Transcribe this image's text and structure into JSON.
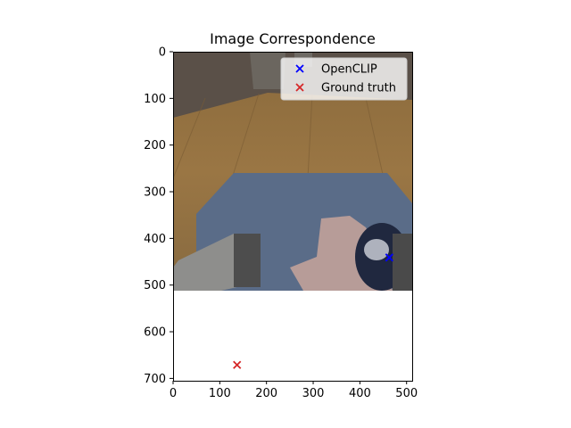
{
  "chart_data": {
    "type": "scatter",
    "title": "Image Correspondence",
    "xlabel": "",
    "ylabel": "",
    "xlim": [
      0,
      512
    ],
    "ylim": [
      705,
      0
    ],
    "y_inverted": true,
    "x_ticks": [
      0,
      100,
      200,
      300,
      400,
      500
    ],
    "y_ticks": [
      0,
      100,
      200,
      300,
      400,
      500,
      600,
      700
    ],
    "image_extent": {
      "x": [
        0,
        512
      ],
      "y": [
        0,
        512
      ]
    },
    "series": [
      {
        "name": "OpenCLIP",
        "marker": "x",
        "color": "#0000ff",
        "points": [
          {
            "x": 463,
            "y": 441
          }
        ]
      },
      {
        "name": "Ground truth",
        "marker": "x",
        "color": "#d62728",
        "points": [
          {
            "x": 137,
            "y": 671
          }
        ]
      }
    ],
    "legend": {
      "position": "upper-right",
      "entries": [
        "OpenCLIP",
        "Ground truth"
      ]
    },
    "grid": false
  }
}
